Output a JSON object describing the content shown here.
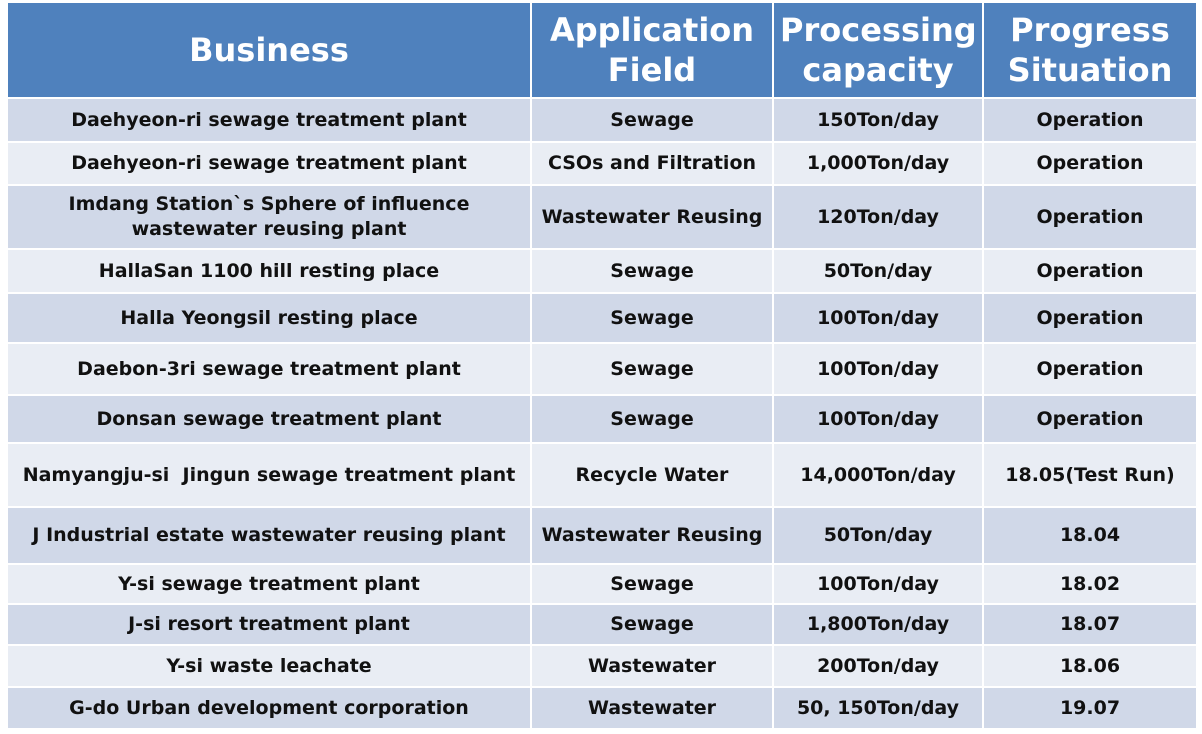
{
  "table": {
    "header": [
      "Business",
      "Application Field",
      "Processing capacity",
      "Progress Situation"
    ],
    "rows": [
      [
        "Daehyeon-ri sewage treatment plant",
        "Sewage",
        "150Ton/day",
        "Operation"
      ],
      [
        "Daehyeon-ri sewage treatment plant",
        "CSOs and Filtration",
        "1,000Ton/day",
        "Operation"
      ],
      [
        "Imdang Station`s Sphere of influence wastewater reusing plant",
        "Wastewater Reusing",
        "120Ton/day",
        "Operation"
      ],
      [
        "HallaSan 1100 hill resting place",
        "Sewage",
        "50Ton/day",
        "Operation"
      ],
      [
        "Halla Yeongsil resting place",
        "Sewage",
        "100Ton/day",
        "Operation"
      ],
      [
        "Daebon-3ri sewage treatment plant",
        "Sewage",
        "100Ton/day",
        "Operation"
      ],
      [
        "Donsan sewage treatment plant",
        "Sewage",
        "100Ton/day",
        "Operation"
      ],
      [
        "Namyangju-si  Jingun sewage treatment plant",
        "Recycle Water",
        "14,000Ton/day",
        "18.05(Test Run)"
      ],
      [
        "J Industrial estate wastewater reusing plant",
        "Wastewater Reusing",
        "50Ton/day",
        "18.04"
      ],
      [
        "Y-si sewage treatment plant",
        "Sewage",
        "100Ton/day",
        "18.02"
      ],
      [
        "J-si resort treatment plant",
        "Sewage",
        "1,800Ton/day",
        "18.07"
      ],
      [
        "Y-si waste leachate",
        "Wastewater",
        "200Ton/day",
        "18.06"
      ],
      [
        "G-do Urban development corporation",
        "Wastewater",
        "50, 150Ton/day",
        "19.07"
      ]
    ]
  }
}
